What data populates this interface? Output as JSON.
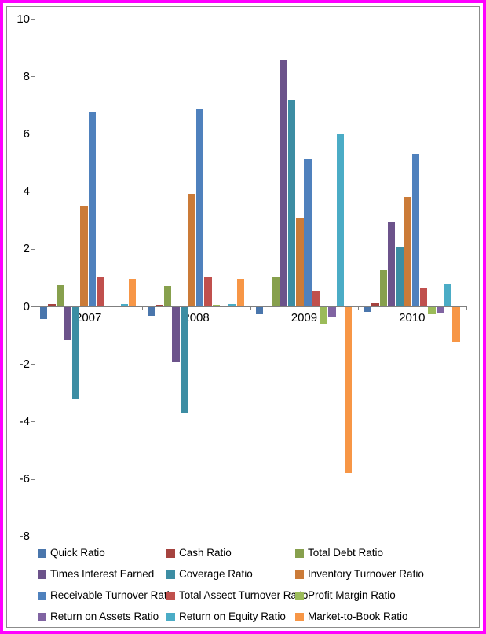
{
  "frame": {
    "outer_border_color": "#FF00FF",
    "inner_border_color": "#8C8C8C",
    "background": "#FFFFFF"
  },
  "chart_data": {
    "type": "bar",
    "title": "",
    "xlabel": "",
    "ylabel": "",
    "categories": [
      "2007",
      "2008",
      "2009",
      "2010"
    ],
    "yticks": [
      10,
      8,
      6,
      4,
      2,
      0,
      -2,
      -4,
      -6,
      -8
    ],
    "ylim": [
      -8,
      10
    ],
    "grid": false,
    "legend_position": "bottom",
    "legend_columns": 3,
    "series": [
      {
        "name": "Quick Ratio",
        "color": "#4A76AC",
        "values": [
          -0.4,
          -0.3,
          -0.25,
          -0.15
        ]
      },
      {
        "name": "Cash Ratio",
        "color": "#A5433F",
        "values": [
          0.08,
          0.06,
          0.03,
          0.1
        ]
      },
      {
        "name": "Total Debt Ratio",
        "color": "#87A04D",
        "values": [
          0.75,
          0.7,
          1.05,
          1.25
        ]
      },
      {
        "name": "Times Interest Earned",
        "color": "#6C538B",
        "values": [
          -1.15,
          -1.9,
          8.55,
          2.95
        ]
      },
      {
        "name": "Coverage Ratio",
        "color": "#3C8DA3",
        "values": [
          -3.2,
          -3.7,
          7.2,
          2.05
        ]
      },
      {
        "name": "Inventory Turnover Ratio",
        "color": "#CB7B38",
        "values": [
          3.5,
          3.9,
          3.1,
          3.8
        ]
      },
      {
        "name": "Receivable Turnover Ratio",
        "color": "#4F81BD",
        "values": [
          6.75,
          6.85,
          5.1,
          5.3
        ]
      },
      {
        "name": "Total Assect Turnover Ratio",
        "color": "#C0504D",
        "values": [
          1.05,
          1.05,
          0.55,
          0.65
        ]
      },
      {
        "name": "Profit Margin Ratio",
        "color": "#9BBB59",
        "values": [
          0.02,
          0.05,
          -0.6,
          -0.25
        ]
      },
      {
        "name": "Return on Assets Ratio",
        "color": "#8064A2",
        "values": [
          0.02,
          0.04,
          -0.35,
          -0.2
        ]
      },
      {
        "name": "Return on Equity Ratio",
        "color": "#4BACC6",
        "values": [
          0.07,
          0.08,
          6.0,
          0.8
        ]
      },
      {
        "name": "Market-to-Book Ratio",
        "color": "#F79646",
        "values": [
          0.95,
          0.95,
          -5.75,
          -1.2
        ]
      }
    ]
  }
}
